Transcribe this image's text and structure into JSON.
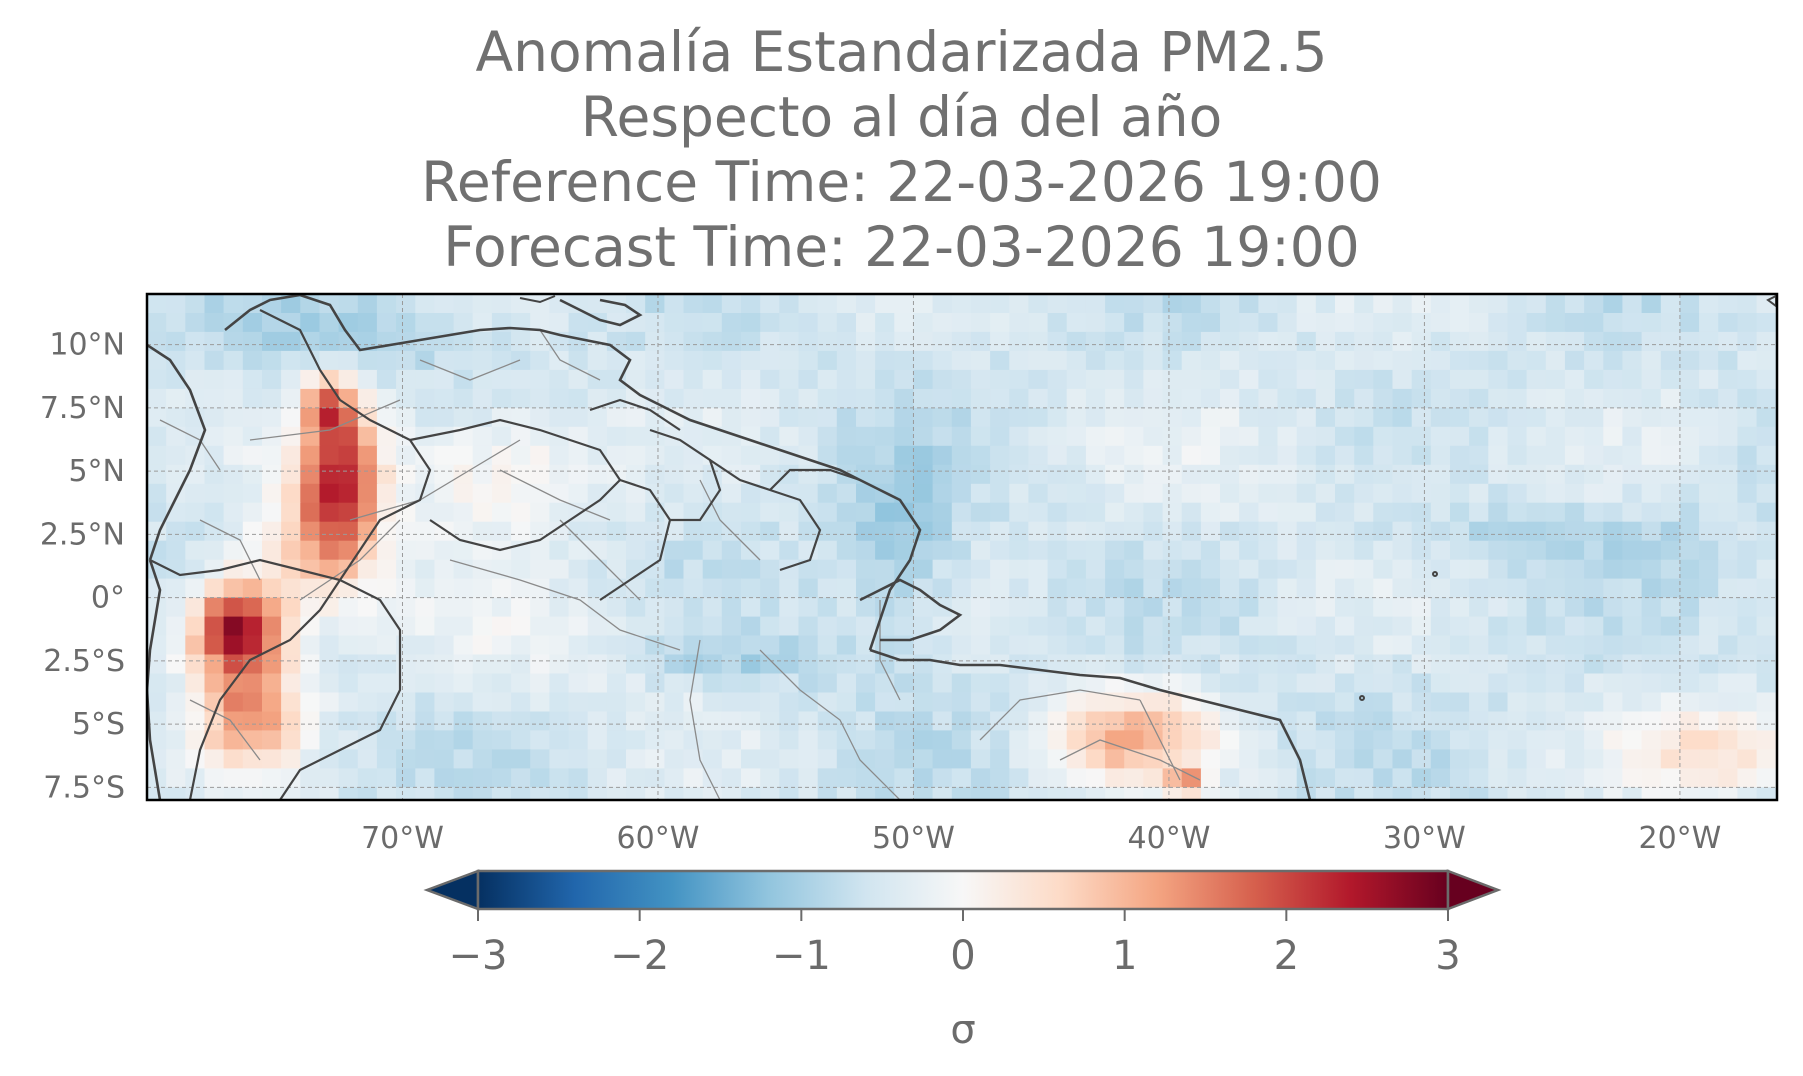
{
  "title": {
    "line1": "Anomalía Estandarizada PM2.5",
    "line2": "Respecto al día del año",
    "line3": "Reference Time: 22-03-2026 19:00",
    "line4": "Forecast Time: 22-03-2026 19:00"
  },
  "map": {
    "extent": {
      "lon_min": -80,
      "lon_max": -16.2,
      "lat_min": -8.0,
      "lat_max": 12.0
    },
    "lat_ticks": [
      {
        "value": 10,
        "label": "10°N"
      },
      {
        "value": 7.5,
        "label": "7.5°N"
      },
      {
        "value": 5,
        "label": "5°N"
      },
      {
        "value": 2.5,
        "label": "2.5°N"
      },
      {
        "value": 0,
        "label": "0°"
      },
      {
        "value": -2.5,
        "label": "2.5°S"
      },
      {
        "value": -5,
        "label": "5°S"
      },
      {
        "value": -7.5,
        "label": "7.5°S"
      }
    ],
    "lon_ticks": [
      {
        "value": -70,
        "label": "70°W"
      },
      {
        "value": -60,
        "label": "60°W"
      },
      {
        "value": -50,
        "label": "50°W"
      },
      {
        "value": -40,
        "label": "40°W"
      },
      {
        "value": -30,
        "label": "30°W"
      },
      {
        "value": -20,
        "label": "20°W"
      }
    ],
    "colormap": "RdBu_r",
    "features": [
      "coastlines",
      "country-borders",
      "state-borders",
      "gridlines"
    ]
  },
  "colorbar": {
    "min": -3,
    "max": 3,
    "extend": "both",
    "ticks": [
      {
        "value": -3,
        "label": "−3"
      },
      {
        "value": -2,
        "label": "−2"
      },
      {
        "value": -1,
        "label": "−1"
      },
      {
        "value": 0,
        "label": "0"
      },
      {
        "value": 1,
        "label": "1"
      },
      {
        "value": 2,
        "label": "2"
      },
      {
        "value": 3,
        "label": "3"
      }
    ],
    "label": "σ",
    "colors": [
      "#053061",
      "#2166ac",
      "#4393c3",
      "#92c5de",
      "#d1e5f0",
      "#f7f7f7",
      "#fddbc7",
      "#f4a582",
      "#d6604d",
      "#b2182b",
      "#67001f"
    ]
  }
}
